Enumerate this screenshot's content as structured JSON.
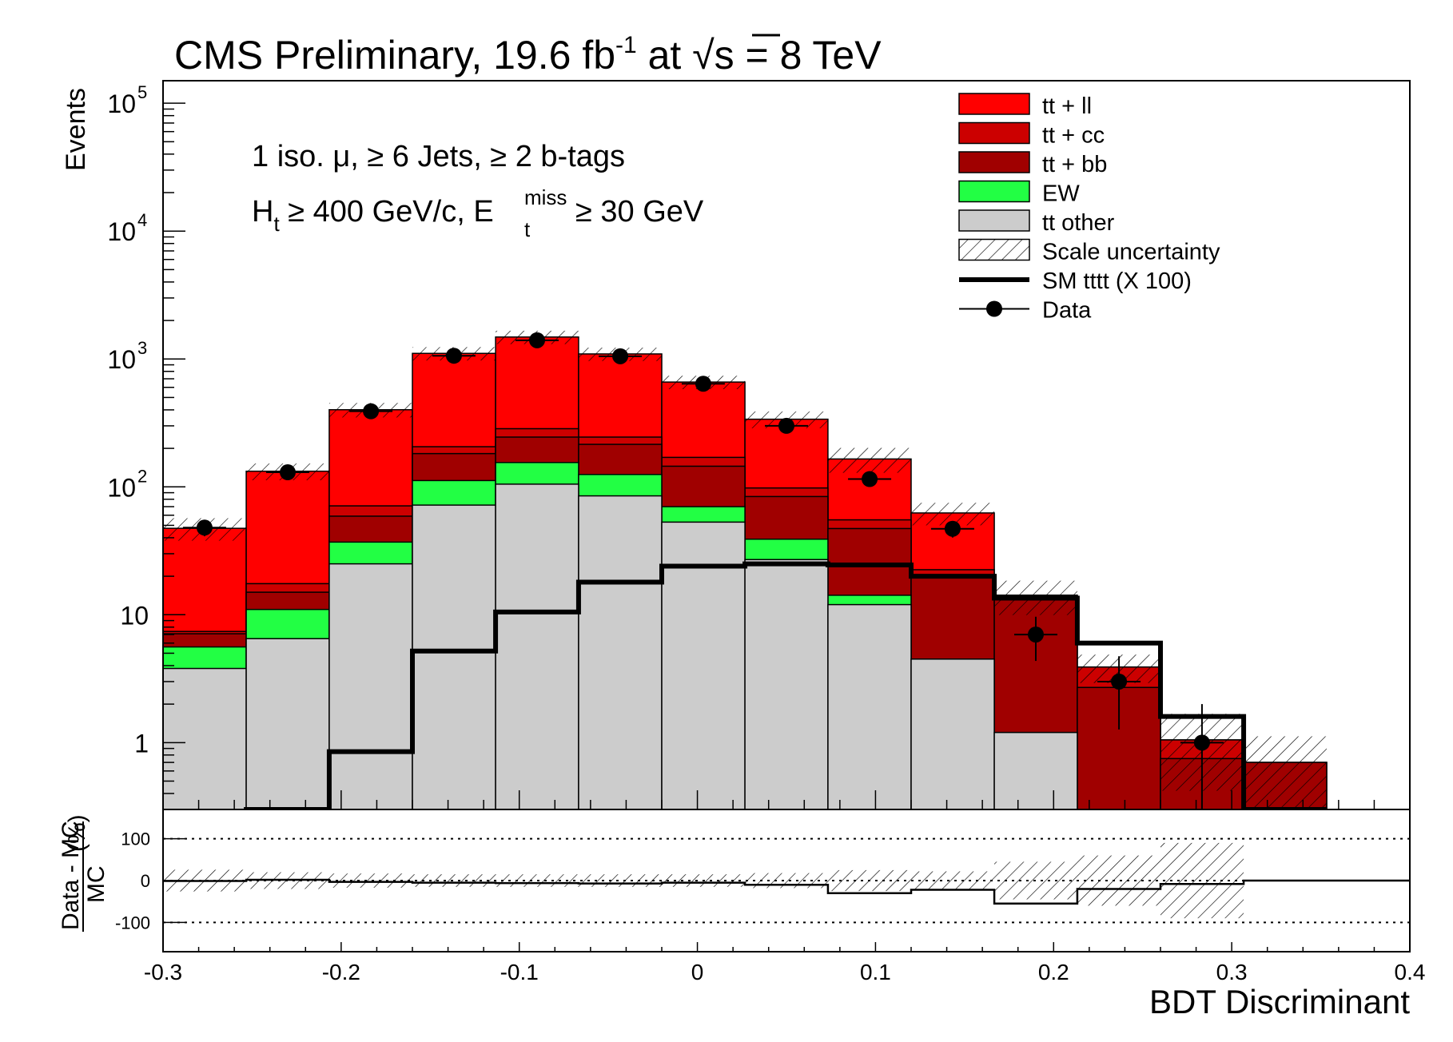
{
  "chart_data": {
    "type": "bar",
    "title": "CMS Preliminary, 19.6 fb-1 at √s = 8 TeV",
    "title_parts": {
      "a": "CMS Preliminary, 19.6 fb",
      "b": "-1",
      "c": " at ",
      "d": "√s",
      "e": " = 8 TeV"
    },
    "selection_line1": "1 iso. μ,  ≥ 6 Jets, ≥ 2 b-tags",
    "selection_line2": {
      "a": "H",
      "b": "t",
      "c": " ≥ 400 GeV/c, E",
      "d": "miss",
      "e": "t",
      "f": " ≥ 30 GeV"
    },
    "xlabel": "BDT Discriminant",
    "ylabel": "Events",
    "ratio_ylabel": {
      "num": "Data - MC",
      "den": "MC",
      "unit": "(%)"
    },
    "xlim": [
      -0.3,
      0.4
    ],
    "ylim": [
      0.3,
      150000
    ],
    "ratio_ylim": [
      -170,
      170
    ],
    "yscale": "log",
    "legend_position": "top-right",
    "x_ticks": [
      {
        "v": -0.3,
        "label": "-0.3"
      },
      {
        "v": -0.2,
        "label": "-0.2"
      },
      {
        "v": -0.1,
        "label": "-0.1"
      },
      {
        "v": 0,
        "label": "0"
      },
      {
        "v": 0.1,
        "label": "0.1"
      },
      {
        "v": 0.2,
        "label": "0.2"
      },
      {
        "v": 0.3,
        "label": "0.3"
      },
      {
        "v": 0.4,
        "label": "0.4"
      }
    ],
    "y_ticks": [
      {
        "v": 1,
        "base": "1",
        "exp": ""
      },
      {
        "v": 10,
        "base": "10",
        "exp": ""
      },
      {
        "v": 100,
        "base": "10",
        "exp": "2"
      },
      {
        "v": 1000,
        "base": "10",
        "exp": "3"
      },
      {
        "v": 10000,
        "base": "10",
        "exp": "4"
      },
      {
        "v": 100000,
        "base": "10",
        "exp": "5"
      }
    ],
    "ratio_ticks": [
      {
        "v": 100,
        "label": "100"
      },
      {
        "v": 0,
        "label": "0"
      },
      {
        "v": -100,
        "label": "-100"
      }
    ],
    "bin_edges": [
      -0.3,
      -0.2533,
      -0.2067,
      -0.16,
      -0.1133,
      -0.0667,
      -0.02,
      0.0267,
      0.0733,
      0.12,
      0.1667,
      0.2133,
      0.26,
      0.3067,
      0.3533
    ],
    "stack": [
      {
        "name": "tt other",
        "color": "#cccccc",
        "values": [
          3.8,
          6.5,
          25,
          72,
          105,
          85,
          53,
          27,
          12,
          4.5,
          1.2,
          0,
          0,
          0
        ]
      },
      {
        "name": "EW",
        "color": "#22ff44",
        "values": [
          1.8,
          4.5,
          12,
          40,
          50,
          40,
          17,
          12,
          2.2,
          0,
          0,
          0,
          0,
          0
        ]
      },
      {
        "name": "tt + bb",
        "color": "#a00000",
        "values": [
          1.5,
          4,
          22,
          70,
          90,
          90,
          75,
          45,
          33,
          15,
          12,
          2.7,
          0.75,
          0.7
        ]
      },
      {
        "name": "tt + cc",
        "color": "#cc0000",
        "values": [
          0.3,
          2.5,
          12,
          24,
          40,
          30,
          25,
          14,
          8,
          3,
          1,
          1.2,
          0.3,
          0
        ]
      },
      {
        "name": "tt + ll",
        "color": "#ff0000",
        "values": [
          40,
          115,
          330,
          900,
          1200,
          850,
          490,
          240,
          110,
          40,
          0,
          0,
          0,
          0
        ]
      }
    ],
    "scale_uncertainty": {
      "name": "Scale uncertainty",
      "rel": [
        0.2,
        0.15,
        0.13,
        0.12,
        0.12,
        0.12,
        0.12,
        0.15,
        0.22,
        0.2,
        0.3,
        0.25,
        0.6,
        0.6
      ]
    },
    "signal": {
      "name": "SM tttt (X 100)",
      "values": [
        0.01,
        0.3,
        0.85,
        5.2,
        10.5,
        18,
        24,
        25,
        24.5,
        20,
        13.5,
        6,
        1.6,
        0.3
      ]
    },
    "data": {
      "name": "Data",
      "points": [
        {
          "x": -0.2767,
          "y": 48
        },
        {
          "x": -0.23,
          "y": 130
        },
        {
          "x": -0.1833,
          "y": 390
        },
        {
          "x": -0.1367,
          "y": 1060
        },
        {
          "x": -0.09,
          "y": 1400
        },
        {
          "x": -0.0433,
          "y": 1050
        },
        {
          "x": 0.0033,
          "y": 640
        },
        {
          "x": 0.05,
          "y": 300
        },
        {
          "x": 0.0967,
          "y": 115
        },
        {
          "x": 0.1433,
          "y": 47
        },
        {
          "x": 0.19,
          "y": 7
        },
        {
          "x": 0.2367,
          "y": 3
        },
        {
          "x": 0.2833,
          "y": 1
        }
      ]
    },
    "ratio": {
      "values": [
        -1,
        2,
        -3,
        -5,
        -6,
        -7,
        -5,
        -10,
        -30,
        -22,
        -55,
        -20,
        -8,
        0
      ],
      "band": [
        26,
        20,
        17,
        15,
        15,
        15,
        15,
        18,
        25,
        22,
        45,
        60,
        90,
        0
      ]
    },
    "legend": [
      {
        "name": "tt + ll",
        "kind": "fill",
        "color": "#ff0000"
      },
      {
        "name": "tt + cc",
        "kind": "fill",
        "color": "#cc0000"
      },
      {
        "name": "tt + bb",
        "kind": "fill",
        "color": "#a00000"
      },
      {
        "name": "EW",
        "kind": "fill",
        "color": "#22ff44"
      },
      {
        "name": "tt other",
        "kind": "fill",
        "color": "#cccccc"
      },
      {
        "name": "Scale uncertainty",
        "kind": "hatch",
        "color": "#000000"
      },
      {
        "name": "SM tttt (X 100)",
        "kind": "line",
        "color": "#000000"
      },
      {
        "name": "Data",
        "kind": "marker",
        "color": "#000000"
      }
    ]
  }
}
